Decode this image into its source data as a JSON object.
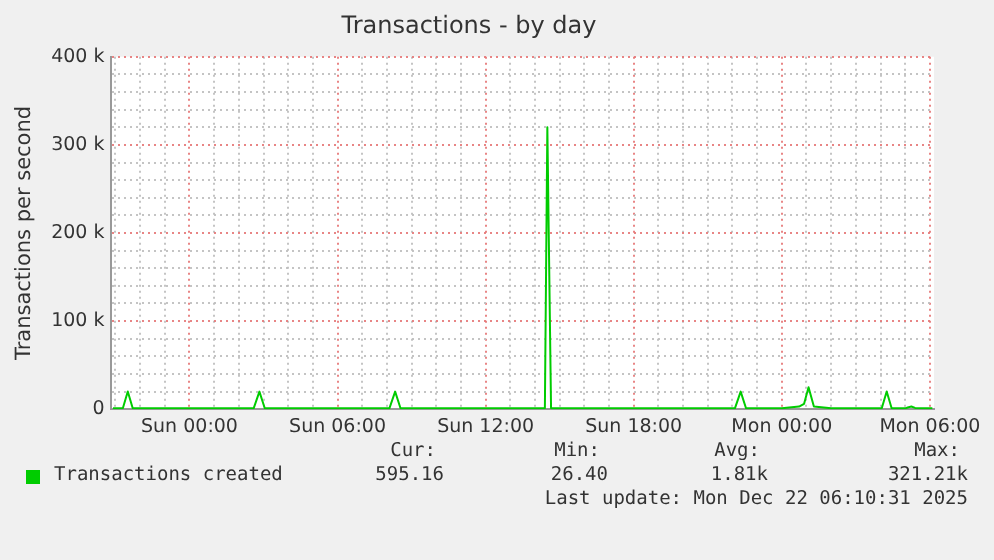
{
  "chart_data": {
    "type": "line",
    "title": "Transactions - by day",
    "ylabel": "Transactions per second",
    "x": [
      "2025-12-20T20:54",
      "2025-12-20T21:18",
      "2025-12-20T21:30",
      "2025-12-20T21:42",
      "2025-12-20T23:00",
      "2025-12-21T00:00",
      "2025-12-21T01:00",
      "2025-12-21T02:00",
      "2025-12-21T02:36",
      "2025-12-21T02:50",
      "2025-12-21T03:03",
      "2025-12-21T04:00",
      "2025-12-21T06:00",
      "2025-12-21T08:00",
      "2025-12-21T08:06",
      "2025-12-21T08:20",
      "2025-12-21T08:33",
      "2025-12-21T10:00",
      "2025-12-21T12:00",
      "2025-12-21T14:12",
      "2025-12-21T14:24",
      "2025-12-21T14:30",
      "2025-12-21T14:39",
      "2025-12-21T14:48",
      "2025-12-21T16:00",
      "2025-12-21T18:00",
      "2025-12-21T20:00",
      "2025-12-21T22:06",
      "2025-12-21T22:20",
      "2025-12-21T22:33",
      "2025-12-22T00:00",
      "2025-12-22T00:42",
      "2025-12-22T00:54",
      "2025-12-22T01:05",
      "2025-12-22T01:18",
      "2025-12-22T02:00",
      "2025-12-22T03:00",
      "2025-12-22T04:03",
      "2025-12-22T04:15",
      "2025-12-22T04:27",
      "2025-12-22T05:00",
      "2025-12-22T05:06",
      "2025-12-22T05:15",
      "2025-12-22T05:24",
      "2025-12-22T06:06"
    ],
    "series": [
      {
        "name": "Transactions created",
        "color": "#00cc00",
        "values": [
          1000,
          1000,
          20000,
          1000,
          1000,
          1000,
          1000,
          1000,
          1000,
          20000,
          1000,
          1000,
          1000,
          1000,
          1000,
          20000,
          1000,
          1000,
          1000,
          1000,
          1000,
          320000,
          1000,
          1000,
          1000,
          1000,
          1000,
          1000,
          20000,
          1000,
          1000,
          3000,
          6000,
          25000,
          3000,
          1000,
          1000,
          1000,
          20000,
          1000,
          1000,
          2000,
          3000,
          1500,
          1000
        ]
      }
    ],
    "xlim": [
      "2025-12-20T20:48",
      "2025-12-22T06:10"
    ],
    "xticks": [
      {
        "value": "2025-12-20T21:00",
        "label": null
      },
      {
        "value": "2025-12-20T22:00",
        "label": null
      },
      {
        "value": "2025-12-20T23:00",
        "label": null
      },
      {
        "value": "2025-12-21T00:00",
        "label": "Sun 00:00"
      },
      {
        "value": "2025-12-21T01:00",
        "label": null
      },
      {
        "value": "2025-12-21T02:00",
        "label": null
      },
      {
        "value": "2025-12-21T03:00",
        "label": null
      },
      {
        "value": "2025-12-21T04:00",
        "label": null
      },
      {
        "value": "2025-12-21T05:00",
        "label": null
      },
      {
        "value": "2025-12-21T06:00",
        "label": "Sun 06:00"
      },
      {
        "value": "2025-12-21T07:00",
        "label": null
      },
      {
        "value": "2025-12-21T08:00",
        "label": null
      },
      {
        "value": "2025-12-21T09:00",
        "label": null
      },
      {
        "value": "2025-12-21T10:00",
        "label": null
      },
      {
        "value": "2025-12-21T11:00",
        "label": null
      },
      {
        "value": "2025-12-21T12:00",
        "label": "Sun 12:00"
      },
      {
        "value": "2025-12-21T13:00",
        "label": null
      },
      {
        "value": "2025-12-21T14:00",
        "label": null
      },
      {
        "value": "2025-12-21T15:00",
        "label": null
      },
      {
        "value": "2025-12-21T16:00",
        "label": null
      },
      {
        "value": "2025-12-21T17:00",
        "label": null
      },
      {
        "value": "2025-12-21T18:00",
        "label": "Sun 18:00"
      },
      {
        "value": "2025-12-21T19:00",
        "label": null
      },
      {
        "value": "2025-12-21T20:00",
        "label": null
      },
      {
        "value": "2025-12-21T21:00",
        "label": null
      },
      {
        "value": "2025-12-21T22:00",
        "label": null
      },
      {
        "value": "2025-12-21T23:00",
        "label": null
      },
      {
        "value": "2025-12-22T00:00",
        "label": "Mon 00:00"
      },
      {
        "value": "2025-12-22T01:00",
        "label": null
      },
      {
        "value": "2025-12-22T02:00",
        "label": null
      },
      {
        "value": "2025-12-22T03:00",
        "label": null
      },
      {
        "value": "2025-12-22T04:00",
        "label": null
      },
      {
        "value": "2025-12-22T05:00",
        "label": null
      },
      {
        "value": "2025-12-22T06:00",
        "label": "Mon 06:00"
      }
    ],
    "ylim": [
      0,
      400000
    ],
    "yticks": [
      0,
      {
        "value": 20000,
        "label": null
      },
      {
        "value": 40000,
        "label": null
      },
      {
        "value": 60000,
        "label": null
      },
      {
        "value": 80000,
        "label": null
      },
      {
        "value": 100000,
        "label": "100 k"
      },
      {
        "value": 120000,
        "label": null
      },
      {
        "value": 140000,
        "label": null
      },
      {
        "value": 160000,
        "label": null
      },
      {
        "value": 180000,
        "label": null
      },
      {
        "value": 200000,
        "label": "200 k"
      },
      {
        "value": 220000,
        "label": null
      },
      {
        "value": 240000,
        "label": null
      },
      {
        "value": 260000,
        "label": null
      },
      {
        "value": 280000,
        "label": null
      },
      {
        "value": 300000,
        "label": "300 k"
      },
      {
        "value": 320000,
        "label": null
      },
      {
        "value": 340000,
        "label": null
      },
      {
        "value": 360000,
        "label": null
      },
      {
        "value": 380000,
        "label": null
      },
      {
        "value": 400000,
        "label": "400 k"
      }
    ],
    "grid": true,
    "legend": "bottom",
    "marker": "none",
    "line_style": "solid",
    "annotations": [
      "Cur:",
      "Min:",
      "Avg:",
      "Max:",
      "595.16",
      "26.40",
      "1.81k",
      "321.21k",
      "Last update: Mon Dec 22 06:10:31 2025"
    ]
  }
}
